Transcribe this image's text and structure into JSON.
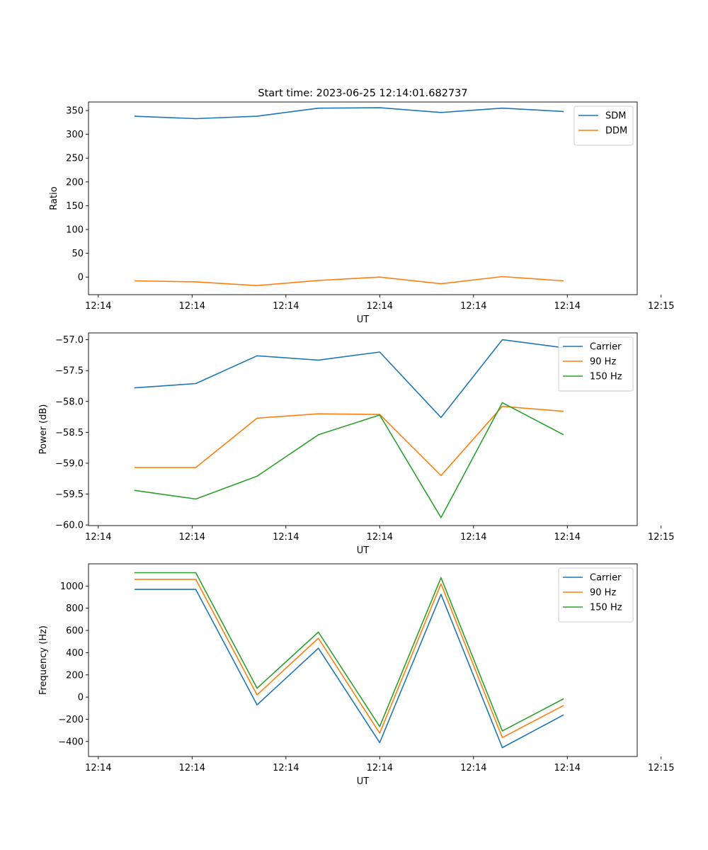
{
  "figure": {
    "title": "Start time: 2023-06-25 12:14:01.682737",
    "x_tick_labels": [
      "12:14",
      "12:14",
      "12:14",
      "12:14",
      "12:14",
      "12:14",
      "12:15"
    ],
    "colors": {
      "blue": "#1f77b4",
      "orange": "#ff7f0e",
      "green": "#2ca02c"
    }
  },
  "chart_data": [
    {
      "type": "line",
      "title": "Start time: 2023-06-25 12:14:01.682737",
      "xlabel": "UT",
      "ylabel": "Ratio",
      "x": [
        1,
        2,
        3,
        4,
        5,
        6,
        7,
        8
      ],
      "xlim": [
        0.25,
        9.2
      ],
      "ylim": [
        -37,
        368
      ],
      "yticks": [
        0,
        50,
        100,
        150,
        200,
        250,
        300,
        350
      ],
      "ytick_labels": [
        "0",
        "50",
        "100",
        "150",
        "200",
        "250",
        "300",
        "350"
      ],
      "legend_position": "top-right",
      "series": [
        {
          "name": "SDM",
          "color": "#1f77b4",
          "values": [
            338,
            333,
            338,
            355,
            356,
            346,
            355,
            348
          ]
        },
        {
          "name": "DDM",
          "color": "#ff7f0e",
          "values": [
            -8,
            -10,
            -18,
            -7,
            0,
            -14,
            1,
            -8
          ]
        }
      ]
    },
    {
      "type": "line",
      "xlabel": "UT",
      "ylabel": "Power (dB)",
      "x": [
        1,
        2,
        3,
        4,
        5,
        6,
        7,
        8
      ],
      "xlim": [
        0.25,
        9.2
      ],
      "ylim": [
        -60.01,
        -56.89
      ],
      "yticks": [
        -60.0,
        -59.5,
        -59.0,
        -58.5,
        -58.0,
        -57.5,
        -57.0
      ],
      "ytick_labels": [
        "−60.0",
        "−59.5",
        "−59.0",
        "−58.5",
        "−58.0",
        "−57.5",
        "−57.0"
      ],
      "legend_position": "top-right",
      "series": [
        {
          "name": "Carrier",
          "color": "#1f77b4",
          "values": [
            -57.78,
            -57.71,
            -57.26,
            -57.33,
            -57.2,
            -58.26,
            -57.0,
            -57.13
          ]
        },
        {
          "name": "90 Hz",
          "color": "#ff7f0e",
          "values": [
            -59.07,
            -59.07,
            -58.27,
            -58.2,
            -58.21,
            -59.2,
            -58.08,
            -58.16
          ]
        },
        {
          "name": "150 Hz",
          "color": "#2ca02c",
          "values": [
            -59.44,
            -59.58,
            -59.21,
            -58.54,
            -58.22,
            -59.88,
            -58.02,
            -58.54
          ]
        }
      ]
    },
    {
      "type": "line",
      "xlabel": "UT",
      "ylabel": "Frequency (Hz)",
      "x": [
        1,
        2,
        3,
        4,
        5,
        6,
        7,
        8
      ],
      "xlim": [
        0.25,
        9.2
      ],
      "ylim": [
        -535,
        1200
      ],
      "yticks": [
        -400,
        -200,
        0,
        200,
        400,
        600,
        800,
        1000
      ],
      "ytick_labels": [
        "−400",
        "−200",
        "0",
        "200",
        "400",
        "600",
        "800",
        "1000"
      ],
      "legend_position": "top-right",
      "series": [
        {
          "name": "Carrier",
          "color": "#1f77b4",
          "values": [
            970,
            970,
            -70,
            440,
            -410,
            925,
            -455,
            -160
          ]
        },
        {
          "name": "90 Hz",
          "color": "#ff7f0e",
          "values": [
            1060,
            1060,
            20,
            530,
            -325,
            1020,
            -365,
            -75
          ]
        },
        {
          "name": "150 Hz",
          "color": "#2ca02c",
          "values": [
            1120,
            1120,
            80,
            585,
            -265,
            1075,
            -305,
            -15
          ]
        }
      ]
    }
  ]
}
